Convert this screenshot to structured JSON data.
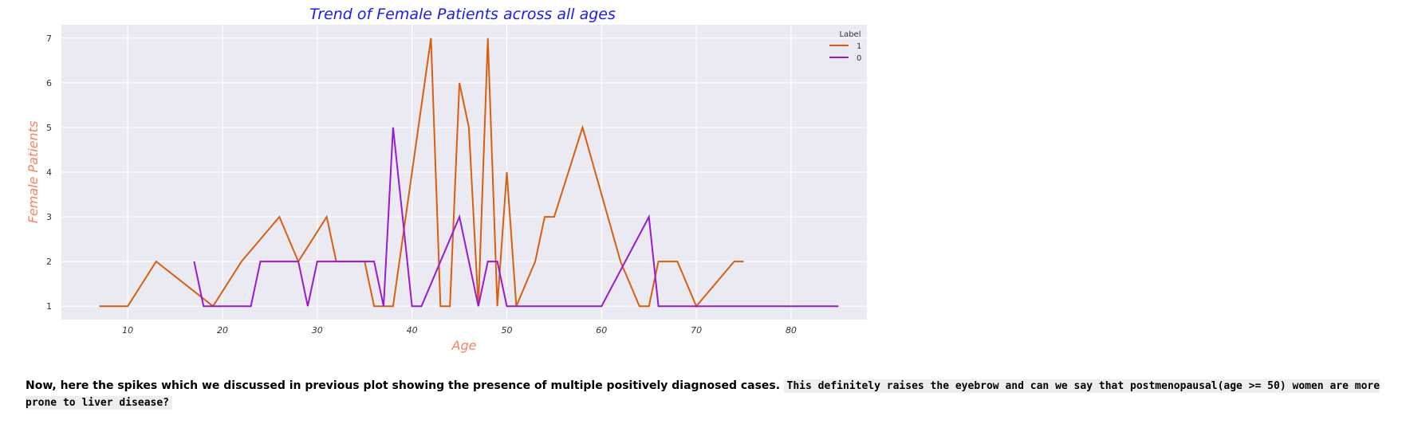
{
  "chart_data": {
    "type": "line",
    "title": "Trend of Female Patients across all ages",
    "xlabel": "Age",
    "ylabel": "Female Patients",
    "xlim": [
      3,
      88
    ],
    "ylim": [
      0.7,
      7.3
    ],
    "x_ticks": [
      10,
      20,
      30,
      40,
      50,
      60,
      70,
      80
    ],
    "y_ticks": [
      1,
      2,
      3,
      4,
      5,
      6,
      7
    ],
    "grid": true,
    "legend": {
      "title": "Label",
      "placement": "top-right"
    },
    "series": [
      {
        "name": "1",
        "color": "#d95f0e",
        "x": [
          7,
          10,
          13,
          19,
          22,
          26,
          28,
          31,
          32,
          35,
          36,
          38,
          42,
          43,
          44,
          45,
          46,
          47,
          48,
          49,
          50,
          51,
          53,
          54,
          55,
          58,
          62,
          64,
          65,
          66,
          67,
          68,
          70,
          74,
          75
        ],
        "y": [
          1,
          1,
          2,
          1,
          2,
          3,
          2,
          3,
          2,
          2,
          1,
          1,
          7,
          1,
          1,
          6,
          5,
          1,
          7,
          1,
          4,
          1,
          2,
          3,
          3,
          5,
          2,
          1,
          1,
          2,
          2,
          2,
          1,
          2,
          2
        ]
      },
      {
        "name": "0",
        "color": "#9a19d4",
        "x": [
          17,
          18,
          19,
          20,
          21,
          23,
          24,
          28,
          29,
          30,
          36,
          37,
          38,
          39,
          40,
          41,
          45,
          47,
          48,
          49,
          50,
          52,
          54,
          55,
          56,
          57,
          60,
          65,
          66,
          70,
          85
        ],
        "y": [
          2,
          1,
          1,
          1,
          1,
          1,
          2,
          2,
          1,
          2,
          2,
          1,
          5,
          3,
          1,
          1,
          3,
          1,
          2,
          2,
          1,
          1,
          1,
          1,
          1,
          1,
          1,
          3,
          1,
          1,
          1
        ]
      }
    ]
  },
  "note": {
    "bold_text": "Now, here the spikes which we discussed in previous plot showing the presence of multiple positively diagnosed cases.",
    "code_text": "This definitely raises the eyebrow and can we say that postmenopausal(age >= 50) women are more prone to liver disease?"
  }
}
